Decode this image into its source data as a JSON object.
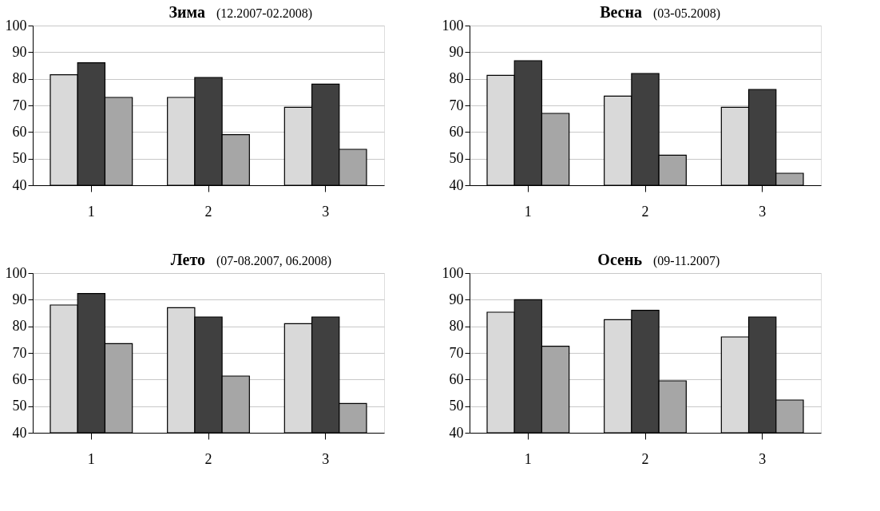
{
  "chart_data": [
    {
      "type": "bar",
      "title": "Зима",
      "subtitle": "(12.2007-02.2008)",
      "categories": [
        "1",
        "2",
        "3"
      ],
      "grid": "y",
      "ylim": [
        40,
        100
      ],
      "yticks": [
        40,
        50,
        60,
        70,
        80,
        90,
        100
      ],
      "series": [
        {
          "color": "#d9d9d9",
          "values": [
            81.5,
            73,
            69.3
          ]
        },
        {
          "color": "#404040",
          "values": [
            86,
            80.5,
            78
          ]
        },
        {
          "color": "#a6a6a6",
          "values": [
            73,
            59,
            53.5
          ]
        }
      ]
    },
    {
      "type": "bar",
      "title": "Весна",
      "subtitle": "(03-05.2008)",
      "categories": [
        "1",
        "2",
        "3"
      ],
      "grid": "y",
      "ylim": [
        40,
        100
      ],
      "yticks": [
        40,
        50,
        60,
        70,
        80,
        90,
        100
      ],
      "series": [
        {
          "color": "#d9d9d9",
          "values": [
            81.3,
            73.5,
            69.3
          ]
        },
        {
          "color": "#404040",
          "values": [
            86.8,
            82,
            76
          ]
        },
        {
          "color": "#a6a6a6",
          "values": [
            67,
            51.3,
            44.5
          ]
        }
      ]
    },
    {
      "type": "bar",
      "title": "Лето",
      "subtitle": "(07-08.2007, 06.2008)",
      "categories": [
        "1",
        "2",
        "3"
      ],
      "grid": "y",
      "ylim": [
        40,
        100
      ],
      "yticks": [
        40,
        50,
        60,
        70,
        80,
        90,
        100
      ],
      "series": [
        {
          "color": "#d9d9d9",
          "values": [
            88,
            87,
            81
          ]
        },
        {
          "color": "#404040",
          "values": [
            92.3,
            83.5,
            83.5
          ]
        },
        {
          "color": "#a6a6a6",
          "values": [
            73.5,
            61.3,
            51
          ]
        }
      ]
    },
    {
      "type": "bar",
      "title": "Осень",
      "subtitle": "(09-11.2007)",
      "categories": [
        "1",
        "2",
        "3"
      ],
      "grid": "y",
      "ylim": [
        40,
        100
      ],
      "yticks": [
        40,
        50,
        60,
        70,
        80,
        90,
        100
      ],
      "series": [
        {
          "color": "#d9d9d9",
          "values": [
            85.3,
            82.5,
            76
          ]
        },
        {
          "color": "#404040",
          "values": [
            90,
            86,
            83.5
          ]
        },
        {
          "color": "#a6a6a6",
          "values": [
            72.5,
            59.5,
            52.3
          ]
        }
      ]
    }
  ]
}
